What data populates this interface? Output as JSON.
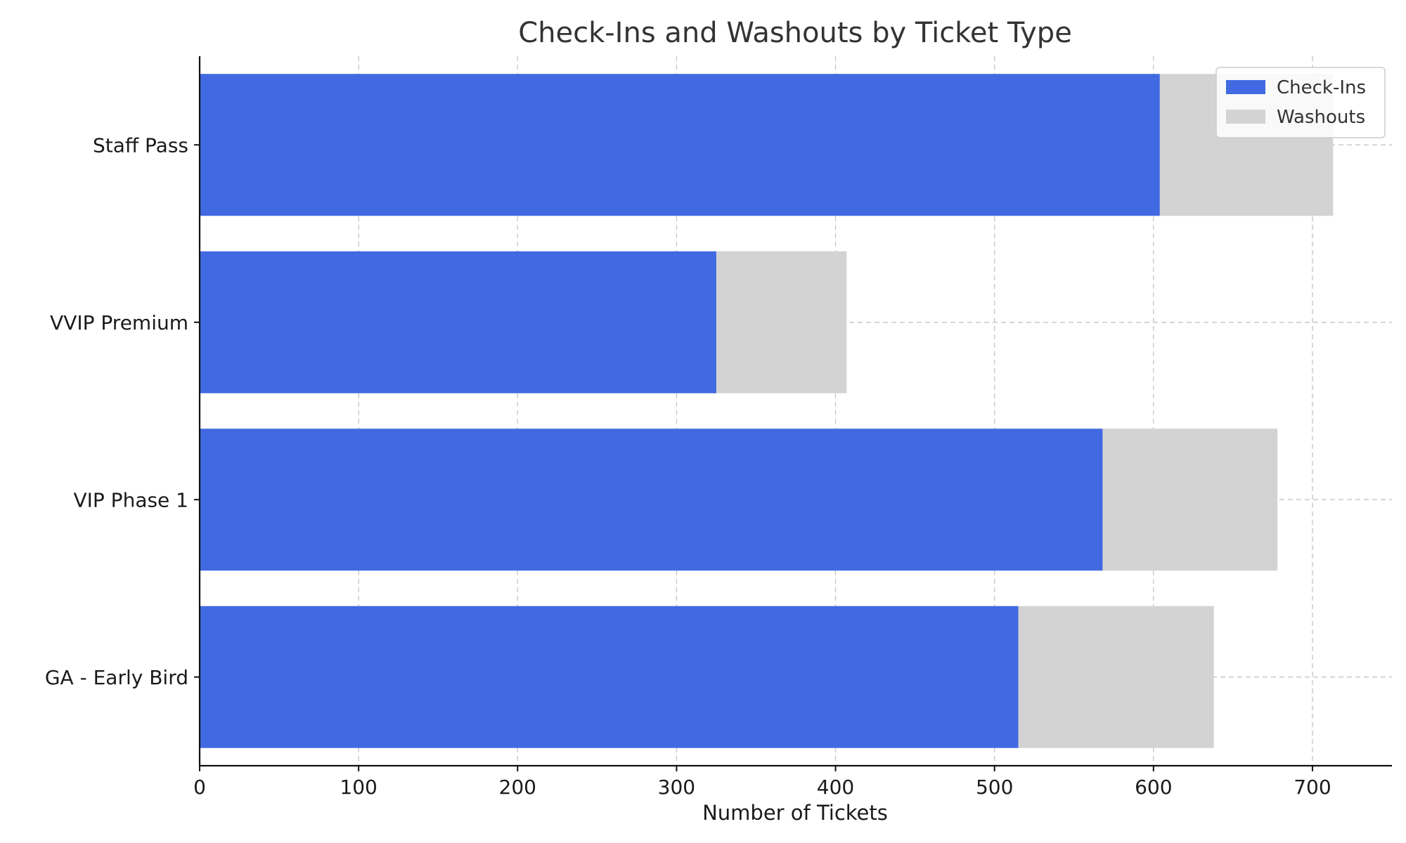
{
  "chart_data": {
    "type": "bar",
    "orientation": "horizontal",
    "stacked": true,
    "title": "Check-Ins and Washouts by Ticket Type",
    "xlabel": "Number of Tickets",
    "ylabel": "",
    "categories": [
      "GA - Early Bird",
      "VIP Phase 1",
      "VVIP Premium",
      "Staff Pass"
    ],
    "series": [
      {
        "name": "Check-Ins",
        "color": "#4169E1",
        "values": [
          515,
          568,
          325,
          604
        ]
      },
      {
        "name": "Washouts",
        "color": "#D3D3D3",
        "values": [
          123,
          110,
          82,
          109
        ]
      }
    ],
    "xlim": [
      0,
      750
    ],
    "xticks": [
      0,
      100,
      200,
      300,
      400,
      500,
      600,
      700
    ],
    "grid": true,
    "legend_position": "top-right"
  }
}
